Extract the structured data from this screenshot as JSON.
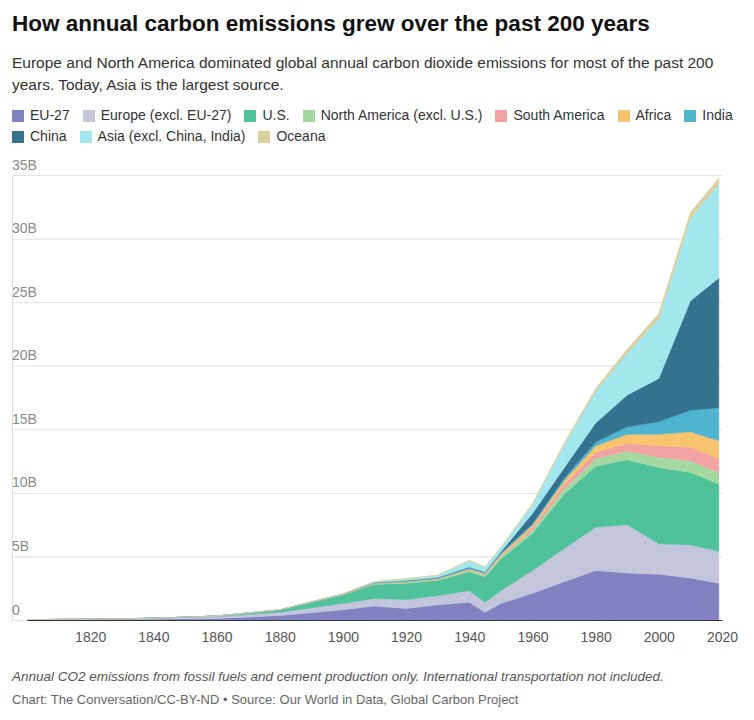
{
  "chart_data": {
    "type": "area",
    "title": "How annual carbon emissions grew over the past 200 years",
    "subtitle": "Europe and North America dominated global annual carbon dioxide emissions for most of the past 200 years. Today, Asia is the largest source.",
    "note": "Annual CO2 emissions from fossil fuels and cement production only. International transportation not included.",
    "source": "Chart: The Conversation/CC-BY-ND • Source: Our World in Data, Global Carbon Project",
    "stacked": true,
    "grid": true,
    "legend": "top",
    "x": [
      1800,
      1820,
      1840,
      1860,
      1880,
      1900,
      1910,
      1920,
      1930,
      1940,
      1945,
      1950,
      1960,
      1970,
      1980,
      1990,
      2000,
      2010,
      2019
    ],
    "xlim": [
      1800,
      2020
    ],
    "xticks": [
      1820,
      1840,
      1860,
      1880,
      1900,
      1920,
      1940,
      1960,
      1980,
      2000,
      2020
    ],
    "ylim": [
      0,
      35
    ],
    "yticks": [
      0,
      {
        "value": 5,
        "label": "5B"
      },
      {
        "value": 10,
        "label": "10B"
      },
      {
        "value": 15,
        "label": "15B"
      },
      {
        "value": 20,
        "label": "20B"
      },
      {
        "value": 25,
        "label": "25B"
      },
      {
        "value": 30,
        "label": "30B"
      },
      {
        "value": 35,
        "label": "35B"
      }
    ],
    "series": [
      {
        "name": "EU-27",
        "color": "#8282c2",
        "values": [
          0.01,
          0.02,
          0.05,
          0.12,
          0.35,
          0.8,
          1.1,
          0.9,
          1.2,
          1.4,
          0.6,
          1.3,
          2.1,
          3.0,
          3.9,
          3.7,
          3.6,
          3.3,
          2.9
        ]
      },
      {
        "name": "Europe (excl. EU-27)",
        "color": "#c2c5dc",
        "values": [
          0.02,
          0.04,
          0.08,
          0.15,
          0.25,
          0.5,
          0.6,
          0.7,
          0.7,
          0.9,
          0.8,
          1.0,
          1.8,
          2.6,
          3.4,
          3.8,
          2.4,
          2.6,
          2.5
        ]
      },
      {
        "name": "U.S.",
        "color": "#4fc29b",
        "values": [
          0,
          0,
          0.01,
          0.04,
          0.18,
          0.65,
          1.1,
          1.3,
          1.2,
          1.5,
          2.0,
          2.5,
          2.9,
          4.3,
          4.8,
          5.1,
          6.0,
          5.7,
          5.3
        ]
      },
      {
        "name": "North America (excl. U.S.)",
        "color": "#a4d8a0",
        "values": [
          0,
          0,
          0,
          0,
          0.01,
          0.03,
          0.06,
          0.07,
          0.07,
          0.1,
          0.12,
          0.15,
          0.25,
          0.4,
          0.6,
          0.7,
          0.8,
          0.9,
          0.9
        ]
      },
      {
        "name": "South America",
        "color": "#f1a3a1",
        "values": [
          0,
          0,
          0,
          0,
          0,
          0.01,
          0.02,
          0.03,
          0.04,
          0.06,
          0.07,
          0.1,
          0.2,
          0.35,
          0.5,
          0.6,
          0.9,
          1.1,
          1.1
        ]
      },
      {
        "name": "Africa",
        "color": "#f8c36d",
        "values": [
          0,
          0,
          0,
          0,
          0,
          0.01,
          0.02,
          0.03,
          0.04,
          0.06,
          0.06,
          0.1,
          0.2,
          0.3,
          0.5,
          0.7,
          0.9,
          1.2,
          1.4
        ]
      },
      {
        "name": "India",
        "color": "#4fb4d0",
        "values": [
          0,
          0,
          0,
          0,
          0.01,
          0.02,
          0.03,
          0.05,
          0.06,
          0.09,
          0.1,
          0.13,
          0.12,
          0.2,
          0.3,
          0.6,
          1.0,
          1.7,
          2.6
        ]
      },
      {
        "name": "China",
        "color": "#35728f",
        "values": [
          0,
          0,
          0,
          0,
          0,
          0,
          0.01,
          0.02,
          0.04,
          0.05,
          0.03,
          0.08,
          0.8,
          0.8,
          1.5,
          2.5,
          3.4,
          8.6,
          10.2
        ]
      },
      {
        "name": "Asia (excl. China, India)",
        "color": "#a2e7ee",
        "values": [
          0,
          0,
          0,
          0,
          0.01,
          0.03,
          0.06,
          0.12,
          0.15,
          0.5,
          0.35,
          0.3,
          0.7,
          1.8,
          2.5,
          3.3,
          4.7,
          6.5,
          7.4
        ]
      },
      {
        "name": "Oceana",
        "color": "#d9cf9f",
        "values": [
          0,
          0,
          0,
          0,
          0.01,
          0.02,
          0.03,
          0.04,
          0.04,
          0.04,
          0.05,
          0.06,
          0.1,
          0.15,
          0.2,
          0.3,
          0.4,
          0.45,
          0.45
        ]
      }
    ]
  }
}
